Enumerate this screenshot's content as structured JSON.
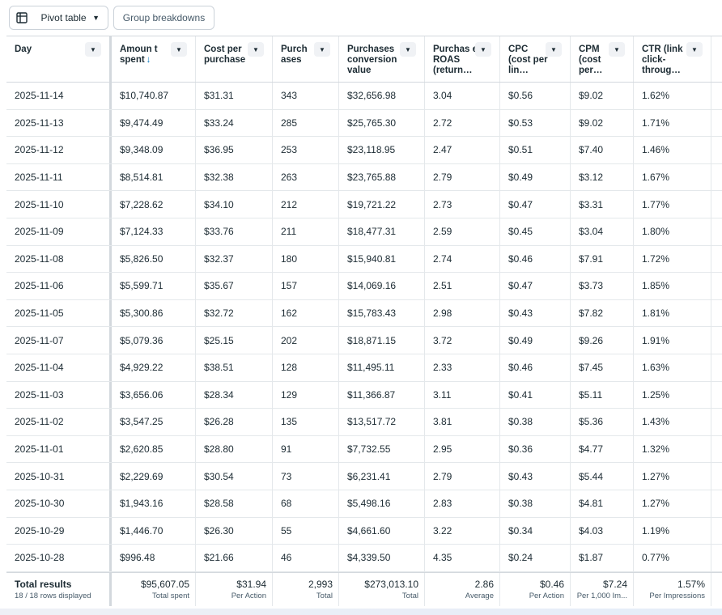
{
  "toolbar": {
    "pivot_label": "Pivot table",
    "group_label": "Group breakdowns"
  },
  "columns": [
    "Day",
    "Amoun t spent",
    "Cost per purchase",
    "Purch ases",
    "Purchases conversion value",
    "Purchas e ROAS (return…",
    "CPC (cost per lin…",
    "CPM (cost per…",
    "CTR (link click- throug…"
  ],
  "sort_icon": "↓",
  "rows": [
    [
      "2025-11-14",
      "$10,740.87",
      "$31.31",
      "343",
      "$32,656.98",
      "3.04",
      "$0.56",
      "$9.02",
      "1.62%"
    ],
    [
      "2025-11-13",
      "$9,474.49",
      "$33.24",
      "285",
      "$25,765.30",
      "2.72",
      "$0.53",
      "$9.02",
      "1.71%"
    ],
    [
      "2025-11-12",
      "$9,348.09",
      "$36.95",
      "253",
      "$23,118.95",
      "2.47",
      "$0.51",
      "$7.40",
      "1.46%"
    ],
    [
      "2025-11-11",
      "$8,514.81",
      "$32.38",
      "263",
      "$23,765.88",
      "2.79",
      "$0.49",
      "$3.12",
      "1.67%"
    ],
    [
      "2025-11-10",
      "$7,228.62",
      "$34.10",
      "212",
      "$19,721.22",
      "2.73",
      "$0.47",
      "$3.31",
      "1.77%"
    ],
    [
      "2025-11-09",
      "$7,124.33",
      "$33.76",
      "211",
      "$18,477.31",
      "2.59",
      "$0.45",
      "$3.04",
      "1.80%"
    ],
    [
      "2025-11-08",
      "$5,826.50",
      "$32.37",
      "180",
      "$15,940.81",
      "2.74",
      "$0.46",
      "$7.91",
      "1.72%"
    ],
    [
      "2025-11-06",
      "$5,599.71",
      "$35.67",
      "157",
      "$14,069.16",
      "2.51",
      "$0.47",
      "$3.73",
      "1.85%"
    ],
    [
      "2025-11-05",
      "$5,300.86",
      "$32.72",
      "162",
      "$15,783.43",
      "2.98",
      "$0.43",
      "$7.82",
      "1.81%"
    ],
    [
      "2025-11-07",
      "$5,079.36",
      "$25.15",
      "202",
      "$18,871.15",
      "3.72",
      "$0.49",
      "$9.26",
      "1.91%"
    ],
    [
      "2025-11-04",
      "$4,929.22",
      "$38.51",
      "128",
      "$11,495.11",
      "2.33",
      "$0.46",
      "$7.45",
      "1.63%"
    ],
    [
      "2025-11-03",
      "$3,656.06",
      "$28.34",
      "129",
      "$11,366.87",
      "3.11",
      "$0.41",
      "$5.11",
      "1.25%"
    ],
    [
      "2025-11-02",
      "$3,547.25",
      "$26.28",
      "135",
      "$13,517.72",
      "3.81",
      "$0.38",
      "$5.36",
      "1.43%"
    ],
    [
      "2025-11-01",
      "$2,620.85",
      "$28.80",
      "91",
      "$7,732.55",
      "2.95",
      "$0.36",
      "$4.77",
      "1.32%"
    ],
    [
      "2025-10-31",
      "$2,229.69",
      "$30.54",
      "73",
      "$6,231.41",
      "2.79",
      "$0.43",
      "$5.44",
      "1.27%"
    ],
    [
      "2025-10-30",
      "$1,943.16",
      "$28.58",
      "68",
      "$5,498.16",
      "2.83",
      "$0.38",
      "$4.81",
      "1.27%"
    ],
    [
      "2025-10-29",
      "$1,446.70",
      "$26.30",
      "55",
      "$4,661.60",
      "3.22",
      "$0.34",
      "$4.03",
      "1.19%"
    ],
    [
      "2025-10-28",
      "$996.48",
      "$21.66",
      "46",
      "$4,339.50",
      "4.35",
      "$0.24",
      "$1.87",
      "0.77%"
    ]
  ],
  "totals": {
    "title": "Total results",
    "subtitle": "18 / 18 rows displayed",
    "values": [
      "$95,607.05",
      "$31.94",
      "2,993",
      "$273,013.10",
      "2.86",
      "$0.46",
      "$7.24",
      "1.57%"
    ],
    "labels": [
      "Total spent",
      "Per Action",
      "Total",
      "Total",
      "Average",
      "Per Action",
      "Per 1,000 Im...",
      "Per Impressions"
    ]
  }
}
